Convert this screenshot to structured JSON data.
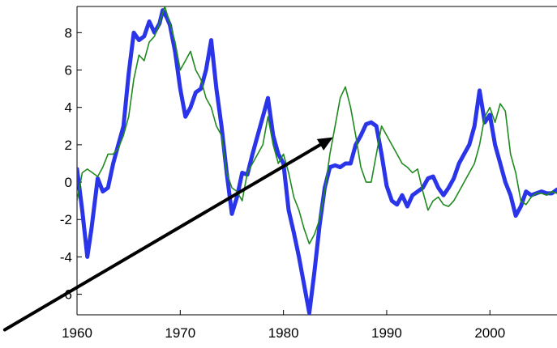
{
  "chart_data": {
    "type": "line",
    "title": "",
    "xlabel": "",
    "ylabel": "",
    "xlim": [
      1960,
      2006.5
    ],
    "ylim": [
      -7.1,
      9.4
    ],
    "xticks": [
      1960,
      1970,
      1980,
      1990,
      2000
    ],
    "yticks": [
      -6,
      -4,
      -2,
      0,
      2,
      4,
      6,
      8
    ],
    "grid": false,
    "colors": {
      "thick": "#2a34e8",
      "thin": "#1f8a1f",
      "arrow": "#000000",
      "axis": "#000000"
    },
    "series": [
      {
        "style": "thick",
        "x": [
          1960.0,
          1960.5,
          1961.0,
          1961.4,
          1962.0,
          1962.5,
          1963.0,
          1963.5,
          1964.0,
          1964.5,
          1965.0,
          1965.5,
          1966.0,
          1966.5,
          1967.0,
          1967.5,
          1968.0,
          1968.3,
          1968.7,
          1969.0,
          1969.5,
          1970.0,
          1970.5,
          1971.0,
          1971.5,
          1972.0,
          1972.5,
          1973.0,
          1973.5,
          1974.0,
          1974.5,
          1975.0,
          1975.5,
          1976.0,
          1976.5,
          1977.0,
          1977.5,
          1978.0,
          1978.5,
          1979.0,
          1979.5,
          1980.0,
          1980.5,
          1981.0,
          1981.5,
          1982.0,
          1982.5,
          1983.0,
          1983.5,
          1984.0,
          1984.5,
          1985.0,
          1985.5,
          1986.0,
          1986.5,
          1987.0,
          1987.5,
          1988.0,
          1988.5,
          1989.0,
          1989.5,
          1990.0,
          1990.5,
          1991.0,
          1991.5,
          1992.0,
          1992.5,
          1993.0,
          1993.5,
          1994.0,
          1994.5,
          1995.0,
          1995.5,
          1996.0,
          1996.5,
          1997.0,
          1997.5,
          1998.0,
          1998.5,
          1999.0,
          1999.5,
          2000.0,
          2000.5,
          2001.0,
          2001.5,
          2002.0,
          2002.5,
          2003.0,
          2003.5,
          2004.0,
          2004.5,
          2005.0,
          2005.5,
          2006.0,
          2006.5
        ],
        "y": [
          0.7,
          -1.5,
          -4.0,
          -2.5,
          0.2,
          -0.5,
          -0.3,
          1.0,
          2.0,
          3.0,
          5.8,
          8.0,
          7.6,
          7.8,
          8.6,
          8.0,
          8.5,
          9.2,
          8.8,
          8.4,
          7.0,
          5.0,
          3.5,
          4.0,
          4.8,
          5.0,
          6.0,
          7.6,
          5.0,
          3.0,
          0.5,
          -1.7,
          -0.8,
          0.5,
          0.4,
          1.5,
          2.5,
          3.5,
          4.5,
          2.5,
          1.5,
          1.0,
          -1.5,
          -2.7,
          -4.0,
          -5.5,
          -7.0,
          -4.8,
          -2.3,
          -0.3,
          0.8,
          0.9,
          0.8,
          1.0,
          1.0,
          2.0,
          2.5,
          3.1,
          3.2,
          3.0,
          1.5,
          -0.2,
          -1.0,
          -1.2,
          -0.7,
          -1.3,
          -0.7,
          -0.5,
          -0.3,
          0.2,
          0.3,
          -0.3,
          -0.7,
          -0.3,
          0.2,
          1.0,
          1.5,
          2.0,
          3.0,
          4.9,
          3.2,
          3.6,
          2.0,
          1.0,
          0.0,
          -0.7,
          -1.8,
          -1.3,
          -0.5,
          -0.7,
          -0.6,
          -0.5,
          -0.6,
          -0.6,
          -0.4
        ]
      },
      {
        "style": "thin",
        "x": [
          1960.0,
          1960.5,
          1961.0,
          1961.5,
          1962.0,
          1962.5,
          1963.0,
          1963.5,
          1964.0,
          1964.5,
          1965.0,
          1965.5,
          1966.0,
          1966.5,
          1967.0,
          1967.5,
          1968.0,
          1968.5,
          1969.0,
          1969.5,
          1970.0,
          1970.5,
          1971.0,
          1971.5,
          1972.0,
          1972.5,
          1973.0,
          1973.5,
          1974.0,
          1974.5,
          1975.0,
          1975.5,
          1976.0,
          1976.5,
          1977.0,
          1977.5,
          1978.0,
          1978.5,
          1979.0,
          1979.5,
          1980.0,
          1980.5,
          1981.0,
          1981.5,
          1982.0,
          1982.5,
          1983.0,
          1983.5,
          1984.0,
          1984.5,
          1985.0,
          1985.5,
          1986.0,
          1986.5,
          1987.0,
          1987.5,
          1988.0,
          1988.5,
          1989.0,
          1989.5,
          1990.0,
          1990.5,
          1991.0,
          1991.5,
          1992.0,
          1992.5,
          1993.0,
          1993.5,
          1994.0,
          1994.5,
          1995.0,
          1995.5,
          1996.0,
          1996.5,
          1997.0,
          1997.5,
          1998.0,
          1998.5,
          1999.0,
          1999.5,
          2000.0,
          2000.5,
          2001.0,
          2001.5,
          2002.0,
          2002.5,
          2003.0,
          2003.5,
          2004.0,
          2004.5,
          2005.0,
          2005.5,
          2006.0,
          2006.5
        ],
        "y": [
          -1.0,
          0.5,
          0.7,
          0.5,
          0.3,
          0.8,
          1.5,
          1.5,
          1.8,
          2.5,
          3.5,
          5.5,
          6.8,
          6.5,
          7.5,
          7.8,
          8.5,
          9.4,
          8.5,
          7.5,
          6.0,
          6.5,
          7.0,
          6.0,
          5.5,
          4.5,
          4.0,
          3.0,
          2.5,
          0.5,
          -0.3,
          -0.5,
          -1.0,
          0.5,
          1.0,
          1.5,
          2.0,
          3.5,
          2.0,
          1.0,
          1.5,
          0.5,
          -0.8,
          -1.5,
          -2.5,
          -3.3,
          -2.8,
          -2.0,
          -0.5,
          1.5,
          3.0,
          4.5,
          5.1,
          4.0,
          2.5,
          0.8,
          0.0,
          0.0,
          1.5,
          3.0,
          2.5,
          2.0,
          1.5,
          1.0,
          0.8,
          0.5,
          0.7,
          -0.5,
          -1.5,
          -1.0,
          -0.8,
          -1.2,
          -1.3,
          -1.0,
          -0.5,
          0.0,
          0.5,
          1.0,
          2.0,
          3.5,
          4.0,
          3.2,
          4.2,
          3.8,
          1.5,
          0.5,
          -1.0,
          -1.2,
          -0.8,
          -0.6,
          -0.6,
          -0.7,
          -0.5,
          -0.6
        ]
      }
    ],
    "annotations": [
      {
        "type": "arrow",
        "from": [
          1953.0,
          -7.9
        ],
        "to": [
          1984.8,
          2.4
        ]
      }
    ]
  }
}
